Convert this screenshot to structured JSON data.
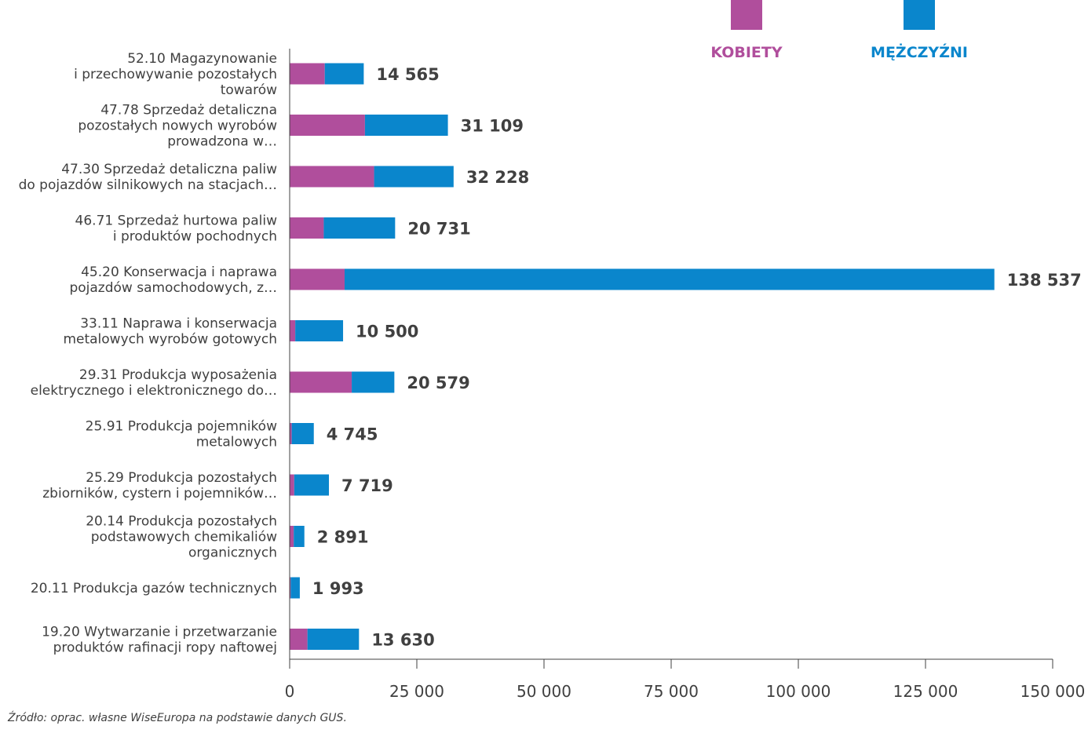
{
  "chart_data": {
    "type": "bar",
    "orientation": "horizontal",
    "stacked": true,
    "categories": [
      [
        "52.10 Magazynowanie",
        "i przechowywanie pozostałych",
        "towarów"
      ],
      [
        "47.78 Sprzedaż detaliczna",
        "pozostałych nowych wyrobów",
        "prowadzona w…"
      ],
      [
        "47.30 Sprzedaż detaliczna paliw",
        "do pojazdów silnikowych na stacjach…"
      ],
      [
        "46.71 Sprzedaż hurtowa paliw",
        "i produktów pochodnych"
      ],
      [
        "45.20 Konserwacja i naprawa",
        "pojazdów samochodowych, z…"
      ],
      [
        "33.11 Naprawa i konserwacja",
        "metalowych wyrobów gotowych"
      ],
      [
        "29.31 Produkcja wyposażenia",
        "elektrycznego i elektronicznego do…"
      ],
      [
        "25.91 Produkcja pojemników",
        "metalowych"
      ],
      [
        "25.29 Produkcja pozostałych",
        "zbiorników, cystern i pojemników…"
      ],
      [
        "20.14 Produkcja pozostałych",
        "podstawowych chemikaliów",
        "organicznych"
      ],
      [
        "20.11 Produkcja gazów technicznych"
      ],
      [
        "19.20 Wytwarzanie i przetwarzanie",
        "produktów rafinacji ropy naftowej"
      ]
    ],
    "series": [
      {
        "name": "KOBIETY",
        "color": "#b04e9c",
        "values": [
          6900,
          14800,
          16600,
          6700,
          10800,
          1100,
          12200,
          400,
          900,
          800,
          200,
          3500
        ]
      },
      {
        "name": "MĘŻCZYŹNI",
        "color": "#0a86cc",
        "values": [
          7665,
          16309,
          15628,
          14031,
          127737,
          9400,
          8379,
          4345,
          6819,
          2091,
          1793,
          10130
        ]
      }
    ],
    "totals": [
      14565,
      31109,
      32228,
      20731,
      138537,
      10500,
      20579,
      4745,
      7719,
      2891,
      1993,
      13630
    ],
    "total_labels": [
      "14 565",
      "31 109",
      "32 228",
      "20 731",
      "138 537",
      "10 500",
      "20 579",
      "4 745",
      "7 719",
      "2 891",
      "1 993",
      "13 630"
    ],
    "xlim": [
      0,
      150000
    ],
    "xticks": [
      0,
      25000,
      50000,
      75000,
      100000,
      125000,
      150000
    ],
    "xtick_labels": [
      "0",
      "25 000",
      "50 000",
      "75 000",
      "100 000",
      "125 000",
      "150 000"
    ],
    "grid": false,
    "legend_position": "top-right"
  },
  "source": "Źródło: oprac. własne WiseEuropa na podstawie danych GUS."
}
